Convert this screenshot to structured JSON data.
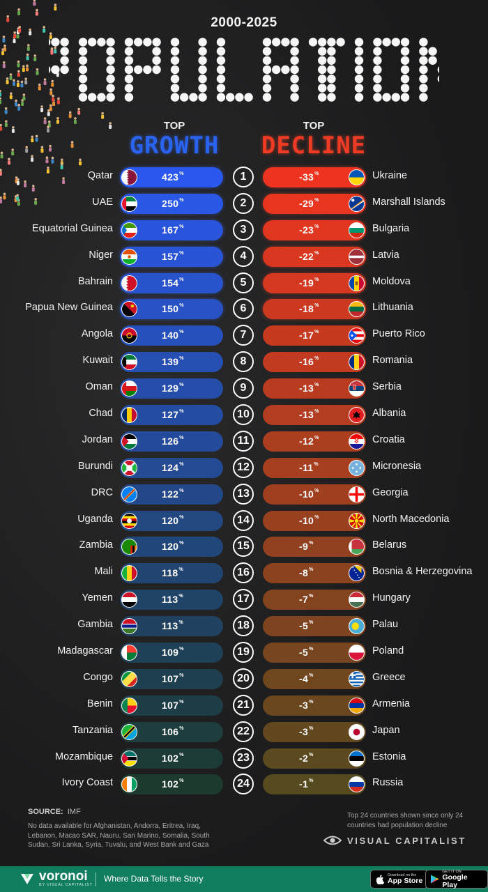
{
  "header": {
    "period": "2000-2025",
    "title": "POPULATION",
    "growth_top": "TOP",
    "growth_word": "GROWTH",
    "decline_top": "TOP",
    "decline_word": "DECLINE"
  },
  "chart_data": {
    "type": "table",
    "title": "POPULATION",
    "subtitle": "2000-2025",
    "unit": "%",
    "growth": [
      {
        "rank": "1",
        "country": "Qatar",
        "value": "423",
        "flag": "qatar"
      },
      {
        "rank": "2",
        "country": "UAE",
        "value": "250",
        "flag": "uae"
      },
      {
        "rank": "3",
        "country": "Equatorial Guinea",
        "value": "167",
        "flag": "equatorial-guinea"
      },
      {
        "rank": "4",
        "country": "Niger",
        "value": "157",
        "flag": "niger"
      },
      {
        "rank": "5",
        "country": "Bahrain",
        "value": "154",
        "flag": "bahrain"
      },
      {
        "rank": "6",
        "country": "Papua New Guinea",
        "value": "150",
        "flag": "papua-new-guinea"
      },
      {
        "rank": "7",
        "country": "Angola",
        "value": "140",
        "flag": "angola"
      },
      {
        "rank": "8",
        "country": "Kuwait",
        "value": "139",
        "flag": "kuwait"
      },
      {
        "rank": "9",
        "country": "Oman",
        "value": "129",
        "flag": "oman"
      },
      {
        "rank": "10",
        "country": "Chad",
        "value": "127",
        "flag": "chad"
      },
      {
        "rank": "11",
        "country": "Jordan",
        "value": "126",
        "flag": "jordan"
      },
      {
        "rank": "12",
        "country": "Burundi",
        "value": "124",
        "flag": "burundi"
      },
      {
        "rank": "13",
        "country": "DRC",
        "value": "122",
        "flag": "drc"
      },
      {
        "rank": "14",
        "country": "Uganda",
        "value": "120",
        "flag": "uganda"
      },
      {
        "rank": "15",
        "country": "Zambia",
        "value": "120",
        "flag": "zambia"
      },
      {
        "rank": "16",
        "country": "Mali",
        "value": "118",
        "flag": "mali"
      },
      {
        "rank": "17",
        "country": "Yemen",
        "value": "113",
        "flag": "yemen"
      },
      {
        "rank": "18",
        "country": "Gambia",
        "value": "113",
        "flag": "gambia"
      },
      {
        "rank": "19",
        "country": "Madagascar",
        "value": "109",
        "flag": "madagascar"
      },
      {
        "rank": "20",
        "country": "Congo",
        "value": "107",
        "flag": "congo"
      },
      {
        "rank": "21",
        "country": "Benin",
        "value": "107",
        "flag": "benin"
      },
      {
        "rank": "22",
        "country": "Tanzania",
        "value": "106",
        "flag": "tanzania"
      },
      {
        "rank": "23",
        "country": "Mozambique",
        "value": "102",
        "flag": "mozambique"
      },
      {
        "rank": "24",
        "country": "Ivory Coast",
        "value": "102",
        "flag": "ivory-coast"
      }
    ],
    "decline": [
      {
        "rank": "1",
        "country": "Ukraine",
        "value": "-33",
        "flag": "ukraine"
      },
      {
        "rank": "2",
        "country": "Marshall Islands",
        "value": "-29",
        "flag": "marshall-islands"
      },
      {
        "rank": "3",
        "country": "Bulgaria",
        "value": "-23",
        "flag": "bulgaria"
      },
      {
        "rank": "4",
        "country": "Latvia",
        "value": "-22",
        "flag": "latvia"
      },
      {
        "rank": "5",
        "country": "Moldova",
        "value": "-19",
        "flag": "moldova"
      },
      {
        "rank": "6",
        "country": "Lithuania",
        "value": "-18",
        "flag": "lithuania"
      },
      {
        "rank": "7",
        "country": "Puerto Rico",
        "value": "-17",
        "flag": "puerto-rico"
      },
      {
        "rank": "8",
        "country": "Romania",
        "value": "-16",
        "flag": "romania"
      },
      {
        "rank": "9",
        "country": "Serbia",
        "value": "-13",
        "flag": "serbia"
      },
      {
        "rank": "10",
        "country": "Albania",
        "value": "-13",
        "flag": "albania"
      },
      {
        "rank": "11",
        "country": "Croatia",
        "value": "-12",
        "flag": "croatia"
      },
      {
        "rank": "12",
        "country": "Micronesia",
        "value": "-11",
        "flag": "micronesia"
      },
      {
        "rank": "13",
        "country": "Georgia",
        "value": "-10",
        "flag": "georgia"
      },
      {
        "rank": "14",
        "country": "North Macedonia",
        "value": "-10",
        "flag": "north-macedonia"
      },
      {
        "rank": "15",
        "country": "Belarus",
        "value": "-9",
        "flag": "belarus"
      },
      {
        "rank": "16",
        "country": "Bosnia & Herzegovina",
        "value": "-8",
        "flag": "bosnia-herzegovina"
      },
      {
        "rank": "17",
        "country": "Hungary",
        "value": "-7",
        "flag": "hungary"
      },
      {
        "rank": "18",
        "country": "Palau",
        "value": "-5",
        "flag": "palau"
      },
      {
        "rank": "19",
        "country": "Poland",
        "value": "-5",
        "flag": "poland"
      },
      {
        "rank": "20",
        "country": "Greece",
        "value": "-4",
        "flag": "greece"
      },
      {
        "rank": "21",
        "country": "Armenia",
        "value": "-3",
        "flag": "armenia"
      },
      {
        "rank": "22",
        "country": "Japan",
        "value": "-3",
        "flag": "japan"
      },
      {
        "rank": "23",
        "country": "Estonia",
        "value": "-2",
        "flag": "estonia"
      },
      {
        "rank": "24",
        "country": "Russia",
        "value": "-1",
        "flag": "russia"
      }
    ]
  },
  "colors": {
    "growth_start": "#2a58ee",
    "growth_end": "#1c3a2e",
    "decline_start": "#ee3420",
    "decline_end": "#564a1f"
  },
  "footnotes": {
    "source_label": "SOURCE:",
    "source": "IMF",
    "no_data": "No data available for Afghanistan, Andorra, Eritrea, Iraq, Lebanon, Macao SAR, Nauru, San Marino, Somalia, South Sudan, Sri Lanka, Syria, Tuvalu, and West Bank and Gaza",
    "decline_note": "Top 24 countries shown since only 24 countries had population decline",
    "publisher": "VISUAL CAPITALIST"
  },
  "footer": {
    "brand": "voronoi",
    "brand_sub": "BY VISUAL CAPITALIST",
    "tagline": "Where Data Tells the Story",
    "appstore_small": "Download on the",
    "appstore_big": "App Store",
    "googleplay_small": "GET IT ON",
    "googleplay_big": "Google Play"
  }
}
